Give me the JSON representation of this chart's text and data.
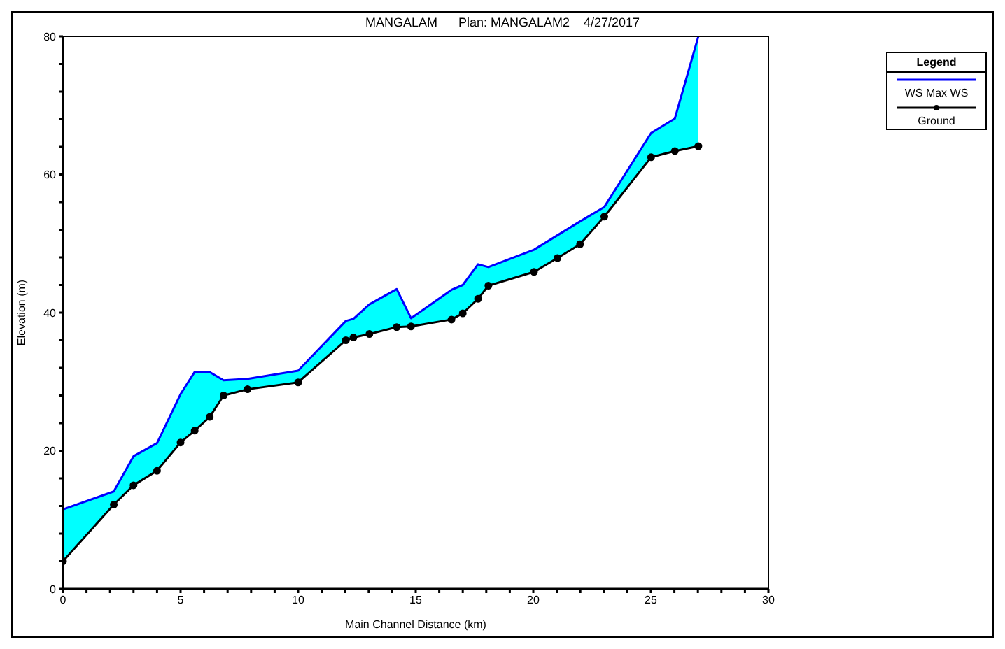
{
  "chart_data": {
    "type": "area",
    "title": "MANGALAM      Plan: MANGALAM2    4/27/2017",
    "xlabel": "Main Channel Distance (km)",
    "ylabel": "Elevation (m)",
    "legend_title": "Legend",
    "x": [
      0,
      2.16,
      3.0,
      4.0,
      5.0,
      5.6,
      6.24,
      6.83,
      7.85,
      10.0,
      12.03,
      12.35,
      13.03,
      14.19,
      14.8,
      16.52,
      17.0,
      17.65,
      18.09,
      20.03,
      21.03,
      21.99,
      23.02,
      25.01,
      26.02,
      27.02
    ],
    "series": [
      {
        "name": "WS Max WS",
        "color": "#0000ff",
        "marker": "none",
        "values": [
          11.5,
          14.1,
          19.2,
          21.1,
          28.2,
          31.4,
          31.4,
          30.2,
          30.4,
          31.6,
          38.8,
          39.1,
          41.2,
          43.4,
          39.2,
          43.3,
          44.0,
          47.0,
          46.6,
          49.1,
          51.2,
          53.2,
          55.3,
          66.0,
          68.1,
          80.0
        ]
      },
      {
        "name": "Ground",
        "type": "line",
        "color": "#000000",
        "marker": "circle",
        "values": [
          4.0,
          12.2,
          15.0,
          17.1,
          21.2,
          22.9,
          24.9,
          28.0,
          28.9,
          29.9,
          36.0,
          36.4,
          36.9,
          37.9,
          38.0,
          39.0,
          39.9,
          42.0,
          43.9,
          45.9,
          47.9,
          49.9,
          53.9,
          62.5,
          63.4,
          64.1
        ]
      }
    ],
    "xlim": [
      0,
      30
    ],
    "xticks": [
      0,
      {
        "value": 1,
        "label": null
      },
      {
        "value": 2,
        "label": null
      },
      {
        "value": 3,
        "label": null
      },
      {
        "value": 4,
        "label": null
      },
      5,
      {
        "value": 6,
        "label": null
      },
      {
        "value": 7,
        "label": null
      },
      {
        "value": 8,
        "label": null
      },
      {
        "value": 9,
        "label": null
      },
      10,
      {
        "value": 11,
        "label": null
      },
      {
        "value": 12,
        "label": null
      },
      {
        "value": 13,
        "label": null
      },
      {
        "value": 14,
        "label": null
      },
      15,
      {
        "value": 16,
        "label": null
      },
      {
        "value": 17,
        "label": null
      },
      {
        "value": 18,
        "label": null
      },
      {
        "value": 19,
        "label": null
      },
      20,
      {
        "value": 21,
        "label": null
      },
      {
        "value": 22,
        "label": null
      },
      {
        "value": 23,
        "label": null
      },
      {
        "value": 24,
        "label": null
      },
      25,
      {
        "value": 26,
        "label": null
      },
      {
        "value": 27,
        "label": null
      },
      {
        "value": 28,
        "label": null
      },
      {
        "value": 29,
        "label": null
      },
      30
    ],
    "ylim": [
      0,
      80
    ],
    "yticks": [
      0,
      {
        "value": 4,
        "label": null
      },
      {
        "value": 8,
        "label": null
      },
      {
        "value": 12,
        "label": null
      },
      {
        "value": 16,
        "label": null
      },
      20,
      {
        "value": 24,
        "label": null
      },
      {
        "value": 28,
        "label": null
      },
      {
        "value": 32,
        "label": null
      },
      {
        "value": 36,
        "label": null
      },
      40,
      {
        "value": 44,
        "label": null
      },
      {
        "value": 48,
        "label": null
      },
      {
        "value": 52,
        "label": null
      },
      {
        "value": 56,
        "label": null
      },
      60,
      {
        "value": 64,
        "label": null
      },
      {
        "value": 68,
        "label": null
      },
      {
        "value": 72,
        "label": null
      },
      {
        "value": 76,
        "label": null
      },
      80
    ],
    "grid": false,
    "legend": "top right"
  }
}
